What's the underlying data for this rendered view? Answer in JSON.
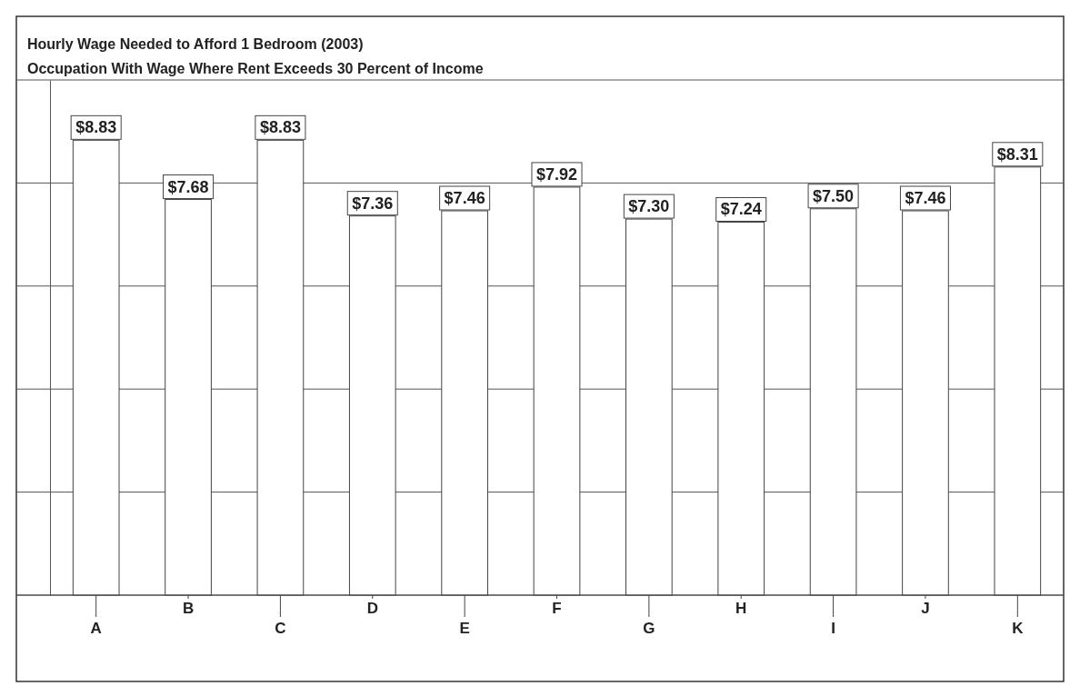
{
  "chart_data": {
    "type": "bar",
    "title": "Hourly Wage Needed to Afford 1 Bedroom (2003)",
    "subtitle": "Occupation With Wage Where Rent Exceeds 30 Percent of Income",
    "categories": [
      "A",
      "B",
      "C",
      "D",
      "E",
      "F",
      "G",
      "H",
      "I",
      "J",
      "K"
    ],
    "values": [
      8.83,
      7.68,
      8.83,
      7.36,
      7.46,
      7.92,
      7.3,
      7.24,
      7.5,
      7.46,
      8.31
    ],
    "value_labels": [
      "$8.83",
      "$7.68",
      "$8.83",
      "$7.36",
      "$7.46",
      "$7.92",
      "$7.30",
      "$7.24",
      "$7.50",
      "$7.46",
      "$8.31"
    ],
    "color": "#ffffff",
    "ylim": [
      0,
      10
    ],
    "yticks": [
      {
        "value": 0,
        "label": null
      },
      {
        "value": 2,
        "label": null
      },
      {
        "value": 4,
        "label": null
      },
      {
        "value": 6,
        "label": null
      },
      {
        "value": 8,
        "label": null
      },
      {
        "value": 10,
        "label": null
      }
    ],
    "grid": "y",
    "tick_labels": "x"
  }
}
